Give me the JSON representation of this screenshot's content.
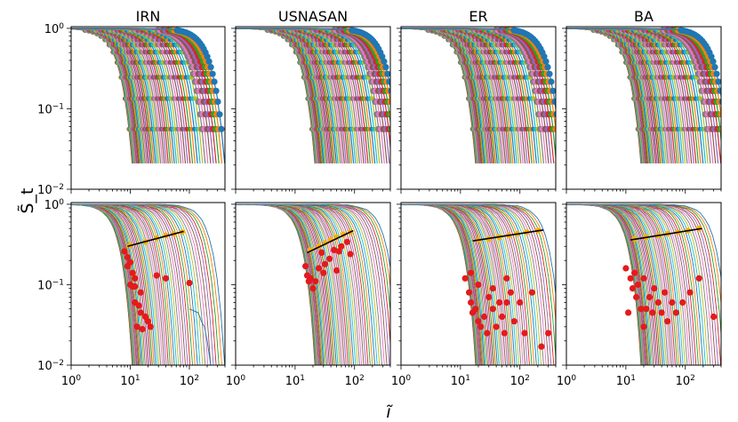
{
  "chart_data": {
    "type": "line",
    "title": "",
    "xlabel": "ĩ",
    "ylabel": "S̃_t",
    "xscale": "log",
    "yscale": "log",
    "xlim": [
      1,
      400
    ],
    "ylim": [
      0.01,
      1.05
    ],
    "x_tick_values": [
      1,
      10,
      100
    ],
    "x_tick_labels": [
      [
        "10",
        "0"
      ],
      [
        "10",
        "1"
      ],
      [
        "10",
        "2"
      ]
    ],
    "y_tick_values": [
      0.01,
      0.1,
      1
    ],
    "y_tick_labels": [
      [
        "10",
        "−2"
      ],
      [
        "10",
        "−1"
      ],
      [
        "10",
        "0"
      ]
    ],
    "column_titles": [
      "IRN",
      "USNASAN",
      "ER",
      "BA"
    ],
    "series_colors": [
      "#1f77b4",
      "#ff7f0e",
      "#2ca02c",
      "#d62728",
      "#9467bd",
      "#8c564b",
      "#e377c2",
      "#7f7f7f",
      "#bcbd22",
      "#17becf"
    ],
    "end_point_color": "#e41a1c",
    "fit_point_color": "#ffb000",
    "fit_line_color": "#000000",
    "panels": {
      "IRN": {
        "curve_count": 55,
        "curve_cutoff_range": [
          6,
          220
        ],
        "tail_end_x": 230,
        "fit_points": [
          [
            10,
            0.31
          ],
          [
            18,
            0.34
          ],
          [
            28,
            0.38
          ],
          [
            40,
            0.41
          ],
          [
            55,
            0.43
          ],
          [
            75,
            0.45
          ]
        ],
        "fit_line": [
          [
            9,
            0.3
          ],
          [
            80,
            0.46
          ]
        ],
        "end_points": [
          [
            8,
            0.26
          ],
          [
            9,
            0.22
          ],
          [
            10,
            0.19
          ],
          [
            11,
            0.14
          ],
          [
            12,
            0.12
          ],
          [
            9,
            0.17
          ],
          [
            10,
            0.1
          ],
          [
            11,
            0.095
          ],
          [
            12,
            0.095
          ],
          [
            15,
            0.08
          ],
          [
            12,
            0.06
          ],
          [
            14,
            0.055
          ],
          [
            15,
            0.045
          ],
          [
            18,
            0.04
          ],
          [
            20,
            0.035
          ],
          [
            13,
            0.03
          ],
          [
            16,
            0.028
          ],
          [
            22,
            0.03
          ],
          [
            28,
            0.13
          ],
          [
            40,
            0.12
          ],
          [
            100,
            0.105
          ]
        ]
      },
      "USNASAN": {
        "curve_count": 55,
        "curve_cutoff_range": [
          12,
          320
        ],
        "tail_end_x": 0,
        "fit_points": [
          [
            18,
            0.27
          ],
          [
            25,
            0.3
          ],
          [
            32,
            0.33
          ],
          [
            40,
            0.36
          ],
          [
            50,
            0.39
          ],
          [
            65,
            0.42
          ],
          [
            85,
            0.45
          ]
        ],
        "fit_line": [
          [
            16,
            0.25
          ],
          [
            95,
            0.47
          ]
        ],
        "end_points": [
          [
            15,
            0.17
          ],
          [
            16,
            0.13
          ],
          [
            17,
            0.11
          ],
          [
            18,
            0.12
          ],
          [
            20,
            0.09
          ],
          [
            22,
            0.11
          ],
          [
            25,
            0.16
          ],
          [
            28,
            0.25
          ],
          [
            32,
            0.18
          ],
          [
            38,
            0.21
          ],
          [
            45,
            0.27
          ],
          [
            55,
            0.26
          ],
          [
            60,
            0.3
          ],
          [
            75,
            0.34
          ],
          [
            85,
            0.24
          ],
          [
            30,
            0.14
          ],
          [
            50,
            0.15
          ]
        ]
      },
      "ER": {
        "curve_count": 55,
        "curve_cutoff_range": [
          10,
          280
        ],
        "tail_end_x": 0,
        "fit_points": [
          [
            20,
            0.36
          ],
          [
            30,
            0.37
          ],
          [
            45,
            0.39
          ],
          [
            65,
            0.41
          ],
          [
            90,
            0.43
          ],
          [
            130,
            0.45
          ],
          [
            200,
            0.47
          ]
        ],
        "fit_line": [
          [
            16,
            0.35
          ],
          [
            250,
            0.48
          ]
        ],
        "end_points": [
          [
            12,
            0.12
          ],
          [
            14,
            0.08
          ],
          [
            15,
            0.06
          ],
          [
            16,
            0.045
          ],
          [
            18,
            0.05
          ],
          [
            20,
            0.035
          ],
          [
            22,
            0.03
          ],
          [
            25,
            0.04
          ],
          [
            28,
            0.025
          ],
          [
            30,
            0.07
          ],
          [
            35,
            0.05
          ],
          [
            40,
            0.03
          ],
          [
            45,
            0.06
          ],
          [
            50,
            0.04
          ],
          [
            55,
            0.025
          ],
          [
            60,
            0.12
          ],
          [
            70,
            0.08
          ],
          [
            80,
            0.035
          ],
          [
            100,
            0.06
          ],
          [
            120,
            0.025
          ],
          [
            160,
            0.08
          ],
          [
            230,
            0.017
          ],
          [
            15,
            0.14
          ],
          [
            20,
            0.1
          ],
          [
            35,
            0.09
          ],
          [
            60,
            0.06
          ],
          [
            300,
            0.025
          ]
        ]
      },
      "BA": {
        "curve_count": 55,
        "curve_cutoff_range": [
          10,
          300
        ],
        "tail_end_x": 0,
        "fit_points": [
          [
            14,
            0.37
          ],
          [
            22,
            0.39
          ],
          [
            35,
            0.41
          ],
          [
            50,
            0.43
          ],
          [
            75,
            0.45
          ],
          [
            110,
            0.47
          ],
          [
            170,
            0.5
          ]
        ],
        "fit_line": [
          [
            12,
            0.36
          ],
          [
            190,
            0.5
          ]
        ],
        "end_points": [
          [
            10,
            0.16
          ],
          [
            12,
            0.12
          ],
          [
            13,
            0.09
          ],
          [
            14,
            0.14
          ],
          [
            15,
            0.07
          ],
          [
            16,
            0.1
          ],
          [
            18,
            0.05
          ],
          [
            20,
            0.12
          ],
          [
            22,
            0.05
          ],
          [
            25,
            0.07
          ],
          [
            28,
            0.045
          ],
          [
            30,
            0.09
          ],
          [
            35,
            0.06
          ],
          [
            40,
            0.045
          ],
          [
            45,
            0.08
          ],
          [
            50,
            0.035
          ],
          [
            60,
            0.06
          ],
          [
            70,
            0.045
          ],
          [
            90,
            0.06
          ],
          [
            120,
            0.08
          ],
          [
            170,
            0.12
          ],
          [
            300,
            0.04
          ],
          [
            11,
            0.045
          ],
          [
            20,
            0.03
          ]
        ]
      }
    }
  }
}
